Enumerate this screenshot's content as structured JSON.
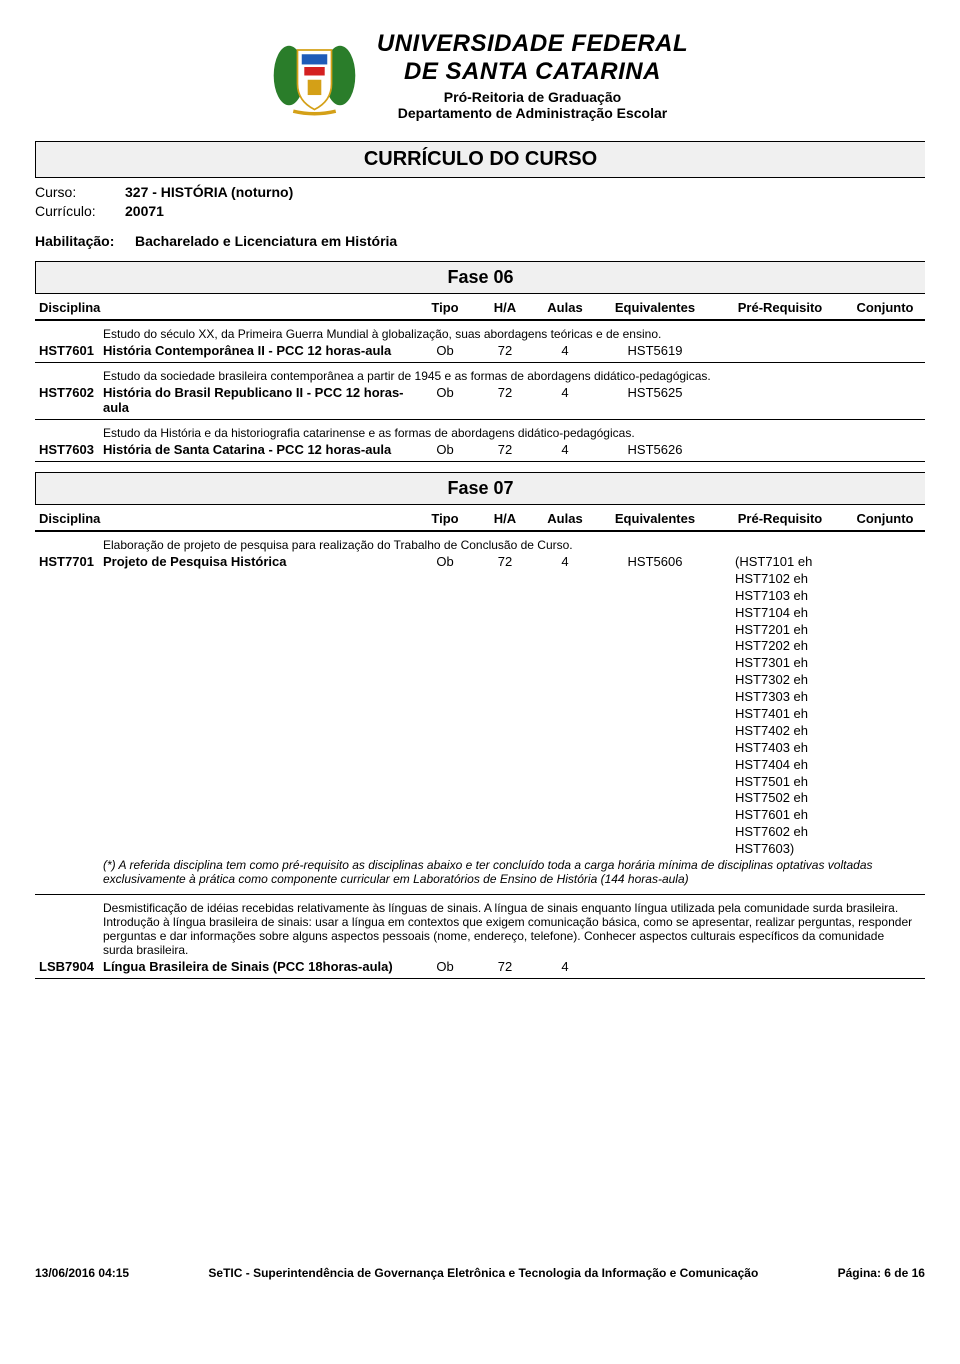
{
  "header": {
    "univ_line1": "UNIVERSIDADE FEDERAL",
    "univ_line2": "DE SANTA CATARINA",
    "sub1": "Pró-Reitoria de Graduação",
    "sub2": "Departamento de Administração Escolar"
  },
  "title": "CURRÍCULO DO CURSO",
  "meta": {
    "curso_label": "Curso:",
    "curso_value": "327 - HISTÓRIA (noturno)",
    "curriculo_label": "Currículo:",
    "curriculo_value": "20071",
    "habil_label": "Habilitação:",
    "habil_value": "Bacharelado e Licenciatura em História"
  },
  "columns": {
    "disciplina": "Disciplina",
    "tipo": "Tipo",
    "ha": "H/A",
    "aulas": "Aulas",
    "equiv": "Equivalentes",
    "prereq": "Pré-Requisito",
    "conjunto": "Conjunto"
  },
  "phases": [
    {
      "title": "Fase 06",
      "courses": [
        {
          "desc": "Estudo do século XX, da Primeira Guerra Mundial à globalização, suas abordagens teóricas e de ensino.",
          "code": "HST7601",
          "name": "História Contemporânea II - PCC 12 horas-aula",
          "tipo": "Ob",
          "ha": "72",
          "aulas": "4",
          "equiv": "HST5619",
          "prereq": []
        },
        {
          "desc": "Estudo da sociedade brasileira contemporânea a partir de 1945 e as formas de abordagens didático-pedagógicas.",
          "code": "HST7602",
          "name": "História do Brasil Republicano II - PCC 12 horas-aula",
          "tipo": "Ob",
          "ha": "72",
          "aulas": "4",
          "equiv": "HST5625",
          "prereq": []
        },
        {
          "desc": "Estudo da História e da historiografia catarinense e as formas de abordagens didático-pedagógicas.",
          "code": "HST7603",
          "name": "História de Santa Catarina - PCC 12 horas-aula",
          "tipo": "Ob",
          "ha": "72",
          "aulas": "4",
          "equiv": "HST5626",
          "prereq": []
        }
      ]
    },
    {
      "title": "Fase 07",
      "courses": [
        {
          "desc": "Elaboração de projeto de pesquisa para realização do Trabalho de Conclusão de Curso.",
          "code": "HST7701",
          "name": "Projeto de Pesquisa Histórica",
          "tipo": "Ob",
          "ha": "72",
          "aulas": "4",
          "equiv": "HST5606",
          "prereq": [
            "(HST7101 eh",
            "HST7102  eh",
            "HST7103  eh",
            "HST7104  eh",
            "HST7201  eh",
            "HST7202  eh",
            "HST7301  eh",
            "HST7302  eh",
            "HST7303  eh",
            "HST7401  eh",
            "HST7402  eh",
            "HST7403  eh",
            "HST7404  eh",
            "HST7501  eh",
            "HST7502  eh",
            "HST7601  eh",
            "HST7602  eh",
            "HST7603)"
          ],
          "note": "(*) A referida disciplina tem como pré-requisito as disciplinas abaixo e ter concluído toda a carga horária mínima de disciplinas optativas voltadas exclusivamente à prática como componente curricular em Laboratórios de Ensino de História (144 horas-aula)"
        },
        {
          "desc": "Desmistificação de idéias recebidas relativamente às línguas de sinais. A língua de sinais enquanto língua utilizada pela comunidade surda brasileira. Introdução à língua brasileira de sinais: usar a língua em contextos que exigem comunicação básica, como se apresentar, realizar perguntas, responder perguntas e dar informações sobre alguns aspectos pessoais (nome, endereço, telefone). Conhecer aspectos culturais específicos da comunidade surda brasileira.",
          "code": "LSB7904",
          "name": "Língua Brasileira de Sinais (PCC 18horas-aula)",
          "tipo": "Ob",
          "ha": "72",
          "aulas": "4",
          "equiv": "",
          "prereq": []
        }
      ]
    }
  ],
  "footer": {
    "date": "13/06/2016 04:15",
    "org": "SeTIC - Superintendência de Governança Eletrônica e Tecnologia da Informação e Comunicação",
    "page": "Página: 6   de   16"
  },
  "colors": {
    "box_bg": "#f0f0f0",
    "border": "#000000",
    "text": "#000000"
  }
}
